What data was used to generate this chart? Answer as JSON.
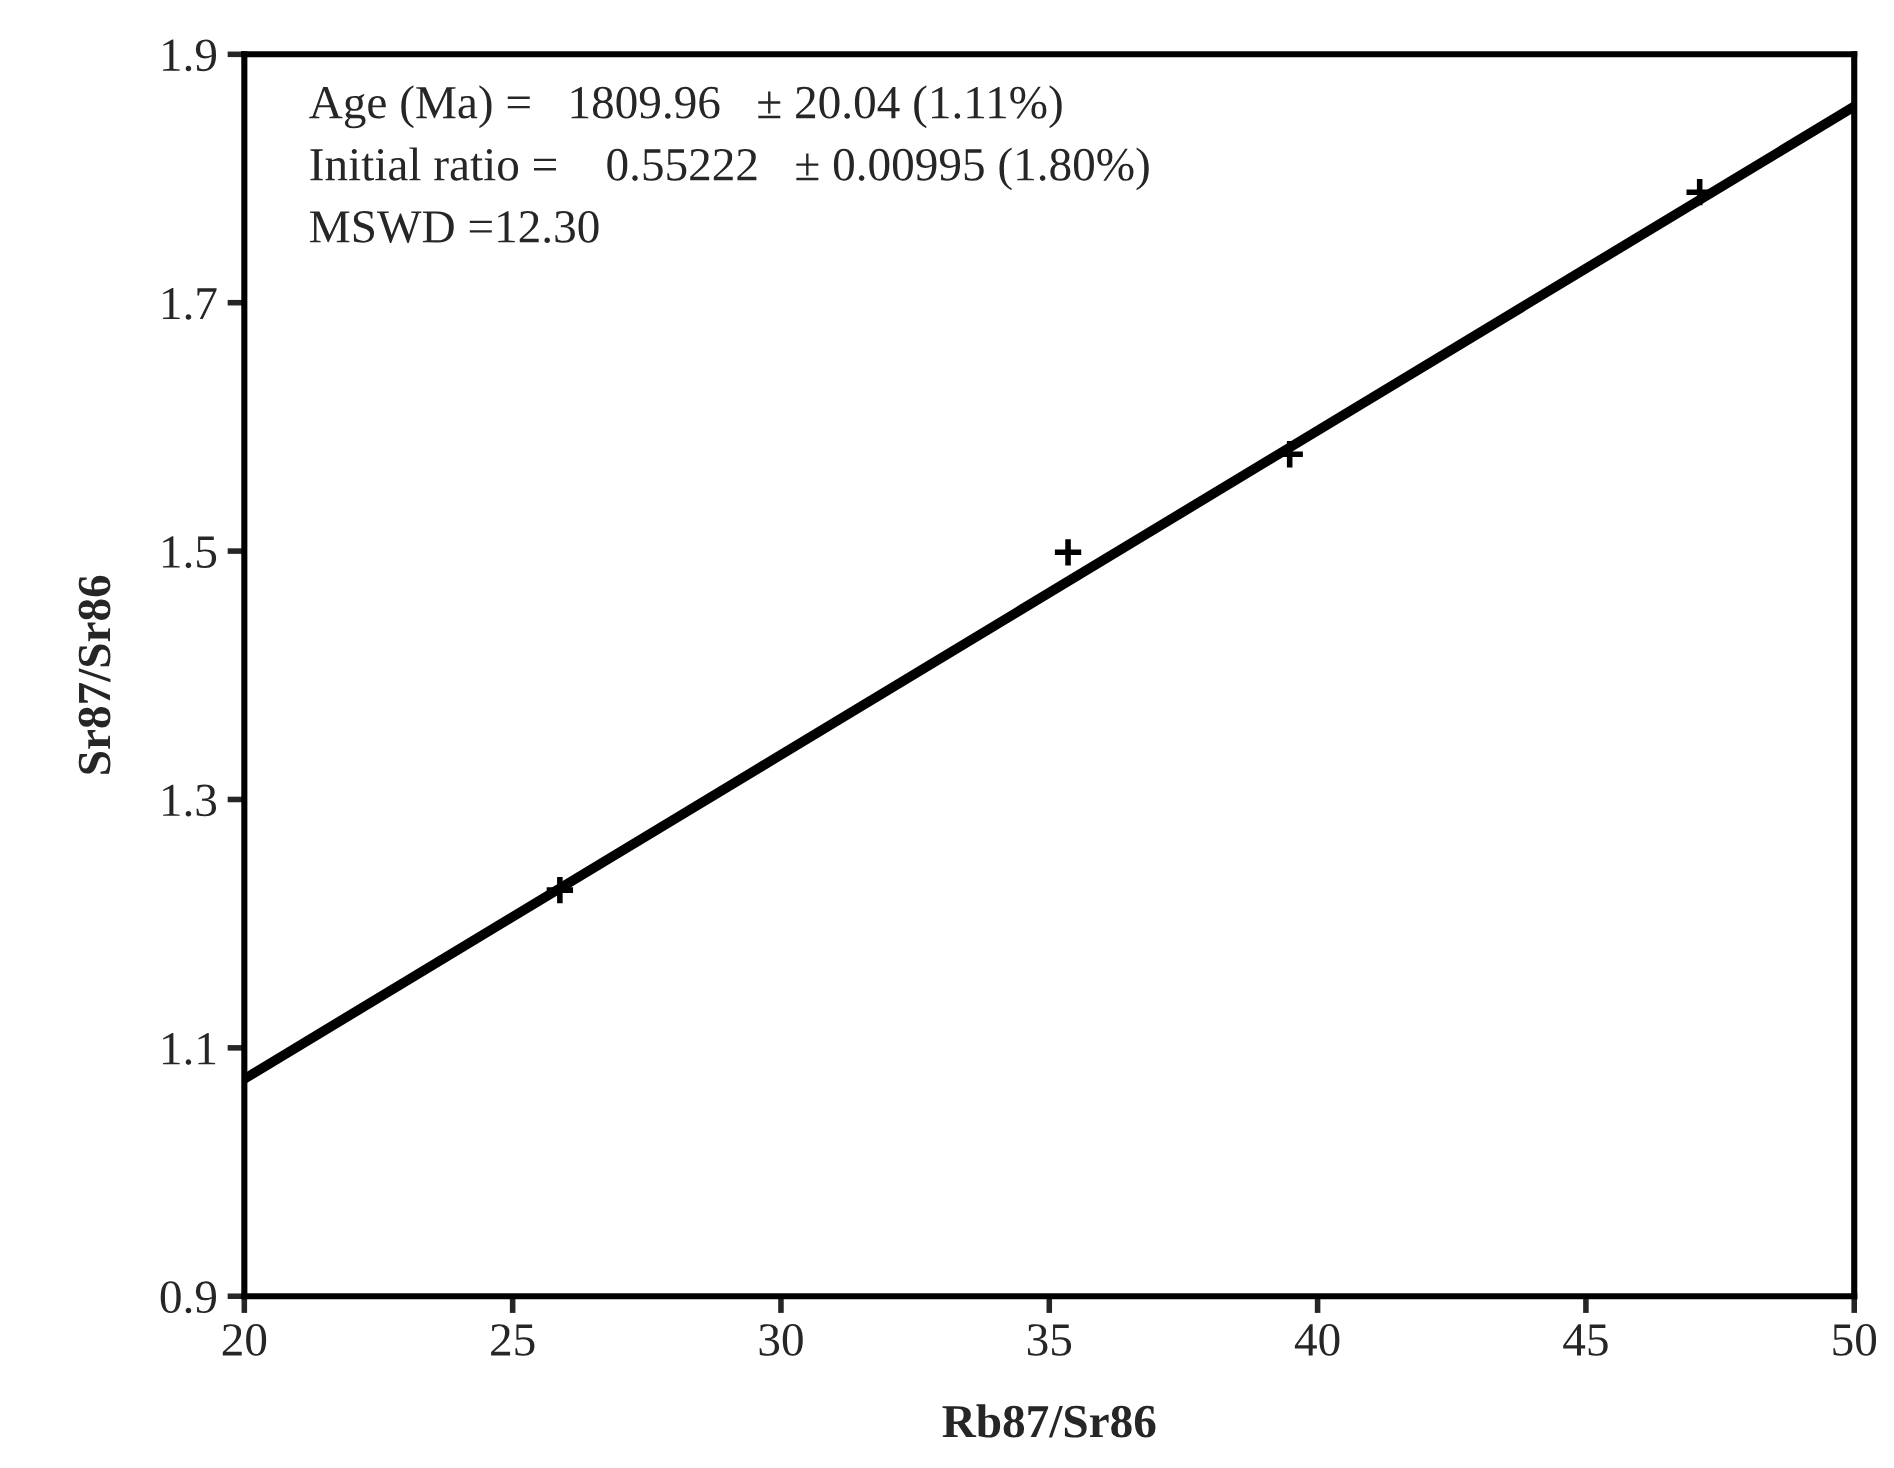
{
  "chart_data": {
    "type": "scatter",
    "xlabel": "Rb87/Sr86",
    "ylabel": "Sr87/Sr86",
    "annotations": [
      "Age (Ma) =   1809.96   ± 20.04 (1.11%)",
      "Initial ratio =    0.55222   ± 0.00995 (1.80%)",
      "MSWD =12.30"
    ],
    "series": [
      {
        "color": "#000000",
        "marker": "cross",
        "x": [
          25.88,
          35.35,
          39.48,
          47.12
        ],
        "values": [
          1.227,
          1.499,
          1.578,
          1.789
        ]
      },
      {
        "type": "line",
        "color": "#000000",
        "marker": "none",
        "line_style": "solid",
        "x": [
          20,
          50
        ],
        "values": [
          1.075,
          1.858
        ]
      }
    ],
    "xlim": [
      20,
      50
    ],
    "xticks": [
      20,
      25,
      30,
      35,
      40,
      45,
      50
    ],
    "ylim": [
      0.9,
      1.9
    ],
    "yticks": [
      0.9,
      1.1,
      1.3,
      1.5,
      1.7,
      1.9
    ],
    "grid": false,
    "legend": false
  }
}
